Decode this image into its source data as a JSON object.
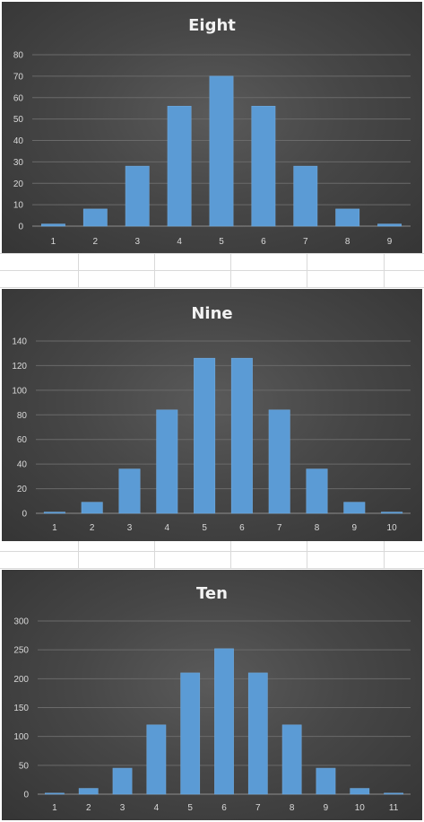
{
  "colors": {
    "bar": "#5b9bd5",
    "bar_edge": "#6fa8dc",
    "panel": "#404040",
    "text": "#d9d9d9",
    "title": "#f2f2f2"
  },
  "chart_data": [
    {
      "type": "bar",
      "title": "Eight",
      "categories": [
        "1",
        "2",
        "3",
        "4",
        "5",
        "6",
        "7",
        "8",
        "9"
      ],
      "values": [
        1,
        8,
        28,
        56,
        70,
        56,
        28,
        8,
        1
      ],
      "ylim": [
        0,
        80
      ],
      "yticks": [
        0,
        10,
        20,
        30,
        40,
        50,
        60,
        70,
        80
      ],
      "grid": true,
      "legend": "none"
    },
    {
      "type": "bar",
      "title": "Nine",
      "categories": [
        "1",
        "2",
        "3",
        "4",
        "5",
        "6",
        "7",
        "8",
        "9",
        "10"
      ],
      "values": [
        1,
        9,
        36,
        84,
        126,
        126,
        84,
        36,
        9,
        1
      ],
      "ylim": [
        0,
        140
      ],
      "yticks": [
        0,
        20,
        40,
        60,
        80,
        100,
        120,
        140
      ],
      "grid": true,
      "legend": "none"
    },
    {
      "type": "bar",
      "title": "Ten",
      "categories": [
        "1",
        "2",
        "3",
        "4",
        "5",
        "6",
        "7",
        "8",
        "9",
        "10",
        "11"
      ],
      "values": [
        1,
        10,
        45,
        120,
        210,
        252,
        210,
        120,
        45,
        10,
        1
      ],
      "ylim": [
        0,
        300
      ],
      "yticks": [
        0,
        50,
        100,
        150,
        200,
        250,
        300
      ],
      "grid": true,
      "legend": "none"
    }
  ]
}
